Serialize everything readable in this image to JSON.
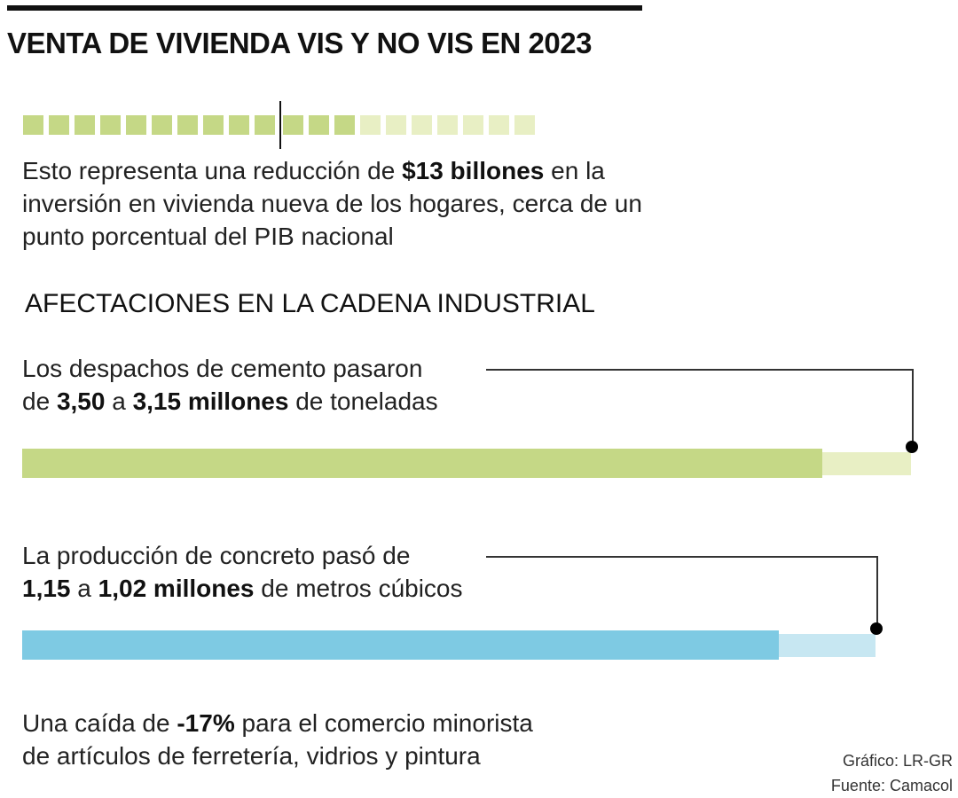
{
  "title": "VENTA DE VIVIENDA VIS Y NO VIS EN 2023",
  "colors": {
    "green": "#c5d886",
    "green_light": "#e8efc4",
    "blue": "#7ecae3",
    "blue_light": "#c7e7f2"
  },
  "squares": {
    "total": 20,
    "filled": 13,
    "divider_after": 10
  },
  "intro": {
    "pre": "Esto representa una reducción de ",
    "bold": "$13 billones",
    "post": " en la inversión en vivienda nueva de los hogares, cerca de un punto porcentual del PIB nacional"
  },
  "section_title": "AFECTACIONES EN LA CADENA INDUSTRIAL",
  "cement": {
    "l1": "Los despachos de cemento pasaron",
    "p1": "de ",
    "b1": "3,50",
    "p2": " a ",
    "b2": "3,15 millones",
    "p3": " de toneladas"
  },
  "concrete": {
    "l1": "La producción de concreto pasó de",
    "b1": "1,15",
    "p2": " a ",
    "b2": "1,02 millones",
    "p3": " de metros cúbicos"
  },
  "retail": {
    "p1": "Una caída de ",
    "b1": "-17%",
    "p2": " para el comercio minorista",
    "l2": "de artículos de ferretería, vidrios y pintura"
  },
  "credits": {
    "graphic": "Gráfico: LR-GR",
    "source": "Fuente: Camacol"
  },
  "chart_data": {
    "type": "bar",
    "series": [
      {
        "name": "Despachos de cemento (millones de toneladas)",
        "before": 3.5,
        "after": 3.15
      },
      {
        "name": "Producción de concreto (millones de m³)",
        "before": 1.15,
        "after": 1.02
      }
    ]
  }
}
